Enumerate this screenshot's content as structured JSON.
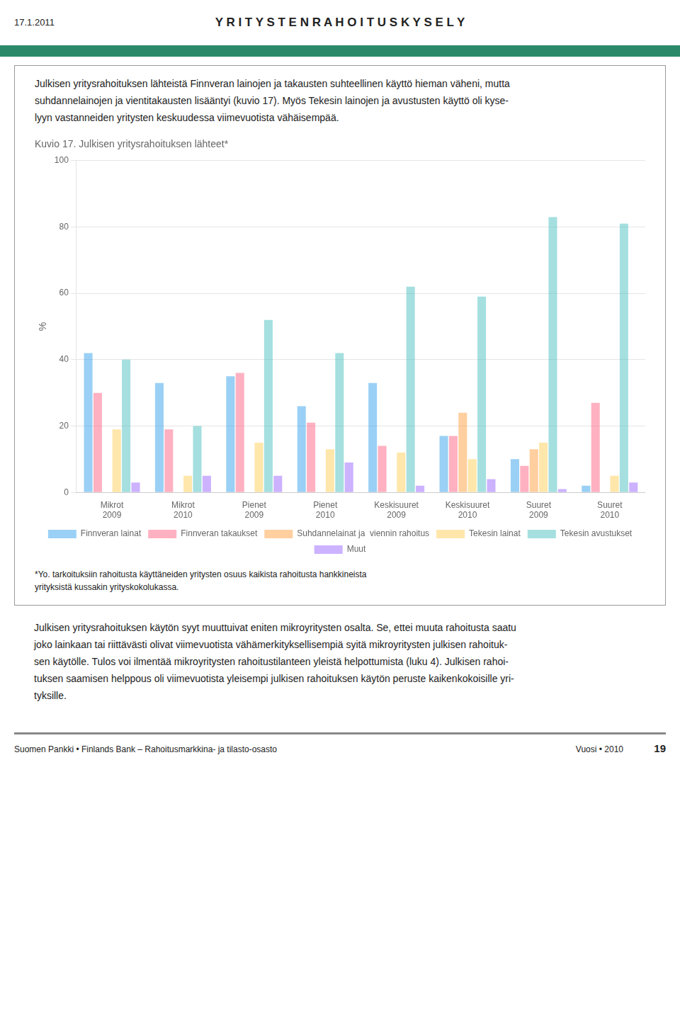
{
  "chart_data": {
    "type": "bar",
    "title": "Kuvio 17. Julkisen yritysrahoituksen lähteet*",
    "categories": [
      "Mikrot\n2009",
      "Mikrot\n2010",
      "Pienet\n2009",
      "Pienet\n2010",
      "Keskisuuret\n2009",
      "Keskisuuret\n2010",
      "Suuret\n2009",
      "Suuret\n2010"
    ],
    "series": [
      {
        "name": "Finnveran lainat",
        "values": [
          42,
          33,
          35,
          26,
          33,
          17,
          10,
          2
        ]
      },
      {
        "name": "Finnveran takaukset",
        "values": [
          30,
          19,
          36,
          21,
          14,
          17,
          8,
          27
        ]
      },
      {
        "name": "Suhdannelainat ja  viennin rahoitus",
        "values": [
          0,
          0,
          0,
          0,
          0,
          24,
          13,
          0
        ]
      },
      {
        "name": "Tekesin lainat",
        "values": [
          19,
          5,
          15,
          13,
          12,
          10,
          15,
          5
        ]
      },
      {
        "name": "Tekesin avustukset",
        "values": [
          40,
          20,
          52,
          42,
          62,
          59,
          83,
          81
        ]
      },
      {
        "name": "Muut",
        "values": [
          3,
          5,
          5,
          9,
          2,
          4,
          1,
          3
        ]
      }
    ],
    "ylabel": "%",
    "ylim": [
      0,
      100
    ],
    "yticks": [
      0,
      20,
      40,
      60,
      80,
      100
    ],
    "grid": true,
    "legend": "bottom"
  },
  "header_date": "17.1.2011",
  "header_title": "Y R I T Y S T E N   R A H O I T U S K Y S E L Y",
  "body_text": "Julkisen yritysrahoituksen lähteistä Finnveran lainojen ja takausten suhteellinen käyttö hieman väheni, mutta\nsuhdannelainojen ja vientitakausten lisääntyi (kuvio 17). Myös Tekesin lainojen ja avustusten käyttö oli kyse-\nlyyn vastanneiden yritysten keskuudessa viimevuotista vähäisempää.",
  "footnote": "*Yo. tarkoituksiin rahoitusta käyttäneiden yritysten osuus kaikista rahoitusta hankkineista\nyrityksistä kussakin yrityskokolukassa.",
  "lower_text": "Julkisen yritysrahoituksen käytön syyt muuttuivat eniten mikroyritysten osalta. Se, ettei muuta rahoitusta saatu\njoko lainkaan tai riittävästi olivat viimevuotista vähämerkityksellisempiä syitä mikroyritysten julkisen rahoituk-\nsen käytölle. Tulos voi ilmentää mikroyritysten rahoitustilanteen yleistä helpottumista (luku 4). Julkisen rahoi-\ntuksen saamisen helppous oli viimevuotista yleisempi julkisen rahoituksen käytön peruste kaikenkokoisille yri-\ntyksille.",
  "footer_left": "Suomen Pankki • Finlands Bank – Rahoitusmarkkina- ja tilasto-osasto",
  "footer_right": "Vuosi • 2010",
  "footer_page": "19"
}
